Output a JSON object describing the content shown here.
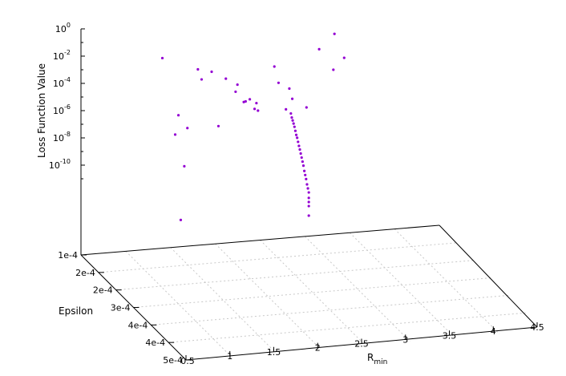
{
  "chart_data": {
    "type": "scatter",
    "projection": "3d",
    "zlabel": "Loss Function Value",
    "z_scale": "log10",
    "z_ticks": [
      {
        "mant": "10",
        "exp": "0",
        "value": 1
      },
      {
        "mant": "10",
        "exp": "-2",
        "value": 0.01
      },
      {
        "mant": "10",
        "exp": "-4",
        "value": 0.0001
      },
      {
        "mant": "10",
        "exp": "-6",
        "value": 1e-06
      },
      {
        "mant": "10",
        "exp": "-8",
        "value": 1e-08
      },
      {
        "mant": "10",
        "exp": "-10",
        "value": 1e-10
      }
    ],
    "xlabel_main": "R",
    "xlabel_sub": "min",
    "xlim": [
      0.5,
      4.5
    ],
    "x_ticks": [
      "0.5",
      "1",
      "1.5",
      "2",
      "2.5",
      "3",
      "3.5",
      "4",
      "4.5"
    ],
    "ylabel": "Epsilon",
    "ylim": [
      0.0005,
      0.0001
    ],
    "y_ticks": [
      "1e-4",
      "2e-4",
      "2e-4",
      "3e-4",
      "4e-4",
      "4e-4",
      "5e-4"
    ],
    "grid": true,
    "point_color": "#9400d3",
    "points": [
      [
        0.5,
        0.00048,
        2e-07
      ],
      [
        0.95,
        0.00034,
        2e-06
      ],
      [
        1.2,
        0.00022,
        1.5e-06
      ],
      [
        1.35,
        0.00012,
        0.006
      ],
      [
        1.5,
        0.00013,
        5e-07
      ],
      [
        1.6,
        0.00017,
        0.006
      ],
      [
        1.6,
        0.00013,
        5e-08
      ],
      [
        1.7,
        0.00015,
        0.0004
      ],
      [
        1.8,
        0.00018,
        5e-07
      ],
      [
        1.9,
        0.00012,
        0.0003
      ],
      [
        2.0,
        0.00014,
        0.0002
      ],
      [
        2.05,
        0.00016,
        5e-05
      ],
      [
        2.1,
        0.00015,
        0.0001
      ],
      [
        2.15,
        0.00018,
        3e-05
      ],
      [
        2.2,
        0.00014,
        3e-06
      ],
      [
        2.25,
        0.00013,
        2e-06
      ],
      [
        2.3,
        0.00016,
        1.5e-06
      ],
      [
        2.35,
        0.00013,
        5e-07
      ],
      [
        2.4,
        0.00012,
        8e-07
      ],
      [
        2.5,
        0.00017,
        0.0002
      ],
      [
        2.6,
        0.00012,
        0.0003
      ],
      [
        2.65,
        0.00016,
        4e-05
      ],
      [
        2.7,
        0.00013,
        3e-07
      ],
      [
        2.8,
        0.00012,
        1e-06
      ],
      [
        2.9,
        0.00014,
        5e-07
      ],
      [
        3.1,
        0.00012,
        0.003
      ],
      [
        3.2,
        0.00014,
        0.0002
      ],
      [
        3.3,
        0.00011,
        0.02
      ],
      [
        3.35,
        0.00013,
        0.0008
      ]
    ],
    "cluster_points": [
      [
        2.55,
        0.0002,
        4e-06
      ],
      [
        2.56,
        0.0002,
        2e-06
      ],
      [
        2.57,
        0.0002,
        1.2e-06
      ],
      [
        2.58,
        0.0002,
        7e-07
      ],
      [
        2.59,
        0.0002,
        4e-07
      ],
      [
        2.6,
        0.0002,
        2e-07
      ],
      [
        2.61,
        0.0002,
        1e-07
      ],
      [
        2.62,
        0.0002,
        6e-08
      ],
      [
        2.63,
        0.0002,
        3e-08
      ],
      [
        2.64,
        0.0002,
        1.5e-08
      ],
      [
        2.65,
        0.0002,
        8e-09
      ],
      [
        2.66,
        0.0002,
        4e-09
      ],
      [
        2.67,
        0.0002,
        2e-09
      ],
      [
        2.68,
        0.0002,
        1e-09
      ],
      [
        2.69,
        0.0002,
        5e-10
      ],
      [
        2.7,
        0.0002,
        2e-10
      ],
      [
        2.71,
        0.0002,
        1e-10
      ],
      [
        2.72,
        0.0002,
        5e-11
      ],
      [
        2.73,
        0.0002,
        2e-11
      ],
      [
        2.74,
        0.0002,
        1e-11
      ],
      [
        2.75,
        0.0002,
        5e-12
      ],
      [
        2.75,
        0.0002,
        2e-12
      ],
      [
        2.75,
        0.0002,
        1e-12
      ],
      [
        2.75,
        0.0002,
        5e-13
      ],
      [
        2.75,
        0.0002,
        1e-13
      ]
    ]
  }
}
